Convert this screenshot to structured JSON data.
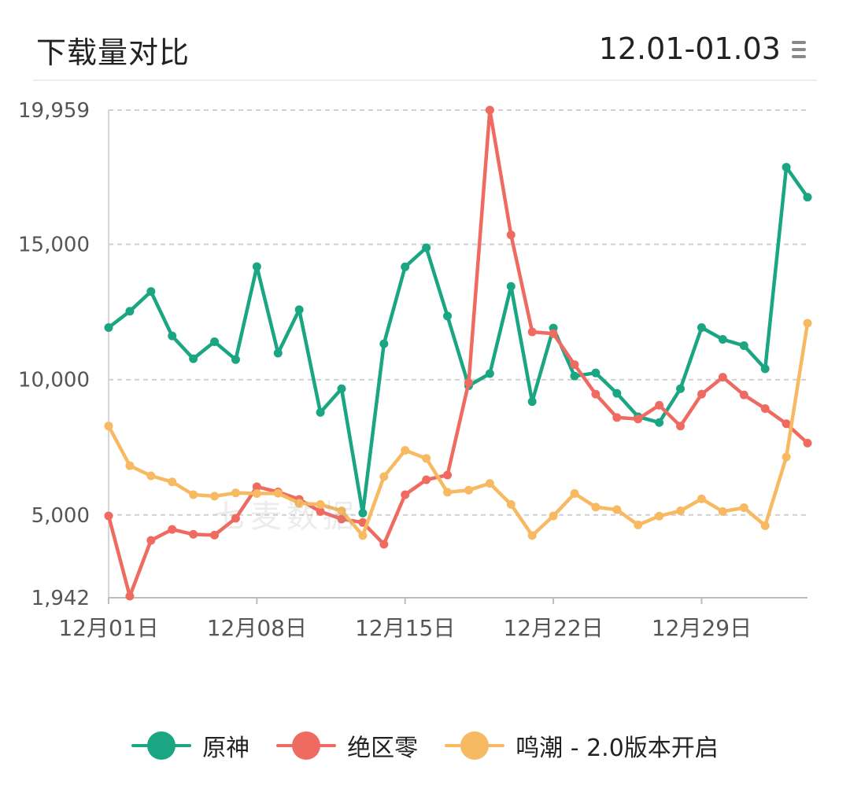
{
  "header": {
    "title": "下载量对比",
    "date_range": "12.01-01.03"
  },
  "watermark": "七麦数据",
  "colors": {
    "genshin": "#1aa583",
    "zzz": "#ef6b61",
    "wuwa": "#f7b961"
  },
  "chart_data": {
    "type": "line",
    "title": "下载量对比",
    "xlabel": "",
    "ylabel": "",
    "ylim": [
      1942,
      19959
    ],
    "yticks": [
      1942,
      5000,
      10000,
      15000,
      19959
    ],
    "ytick_labels": [
      "1,942",
      "5,000",
      "10,000",
      "15,000",
      "19,959"
    ],
    "x": [
      "12月01日",
      "12月02日",
      "12月03日",
      "12月04日",
      "12月05日",
      "12月06日",
      "12月07日",
      "12月08日",
      "12月09日",
      "12月10日",
      "12月11日",
      "12月12日",
      "12月13日",
      "12月14日",
      "12月15日",
      "12月16日",
      "12月17日",
      "12月18日",
      "12月19日",
      "12月20日",
      "12月21日",
      "12月22日",
      "12月23日",
      "12月24日",
      "12月25日",
      "12月26日",
      "12月27日",
      "12月28日",
      "12月29日",
      "12月30日",
      "12月31日",
      "01月01日",
      "01月02日",
      "01月03日"
    ],
    "xtick_labels": [
      "12月01日",
      "12月08日",
      "12月15日",
      "12月22日",
      "12月29日"
    ],
    "xtick_positions": [
      "12月01日",
      "12月08日",
      "12月15日",
      "12月22日",
      "12月29日"
    ],
    "grid": true,
    "legend_position": "bottom",
    "series": [
      {
        "name": "原神",
        "color_key": "genshin",
        "values": [
          11924,
          12526,
          13256,
          11614,
          10774,
          11400,
          10742,
          14177,
          10981,
          12584,
          8789,
          9666,
          5070,
          11324,
          14168,
          14875,
          12351,
          9774,
          10223,
          13446,
          9188,
          11906,
          10135,
          10248,
          9495,
          8631,
          8416,
          9666,
          11924,
          11487,
          11256,
          10403,
          17850,
          16742
        ]
      },
      {
        "name": "绝区零",
        "color_key": "zzz",
        "values": [
          4966,
          2000,
          4059,
          4467,
          4284,
          4255,
          4877,
          6042,
          5851,
          5576,
          5128,
          4850,
          4723,
          3918,
          5749,
          6302,
          6476,
          9891,
          19959,
          15349,
          11764,
          11698,
          10556,
          9464,
          8602,
          8545,
          9055,
          8286,
          9464,
          10089,
          9435,
          8930,
          8371,
          7656
        ]
      },
      {
        "name": "鸣潮 - 2.0版本开启",
        "color_key": "wuwa",
        "values": [
          8286,
          6822,
          6446,
          6222,
          5749,
          5695,
          5816,
          5793,
          5802,
          5431,
          5388,
          5154,
          4241,
          6418,
          7388,
          7091,
          5840,
          5917,
          6166,
          5388,
          4241,
          4966,
          5792,
          5292,
          5195,
          4632,
          4958,
          5154,
          5595,
          5128,
          5268,
          4603,
          7142,
          12083
        ]
      }
    ]
  }
}
